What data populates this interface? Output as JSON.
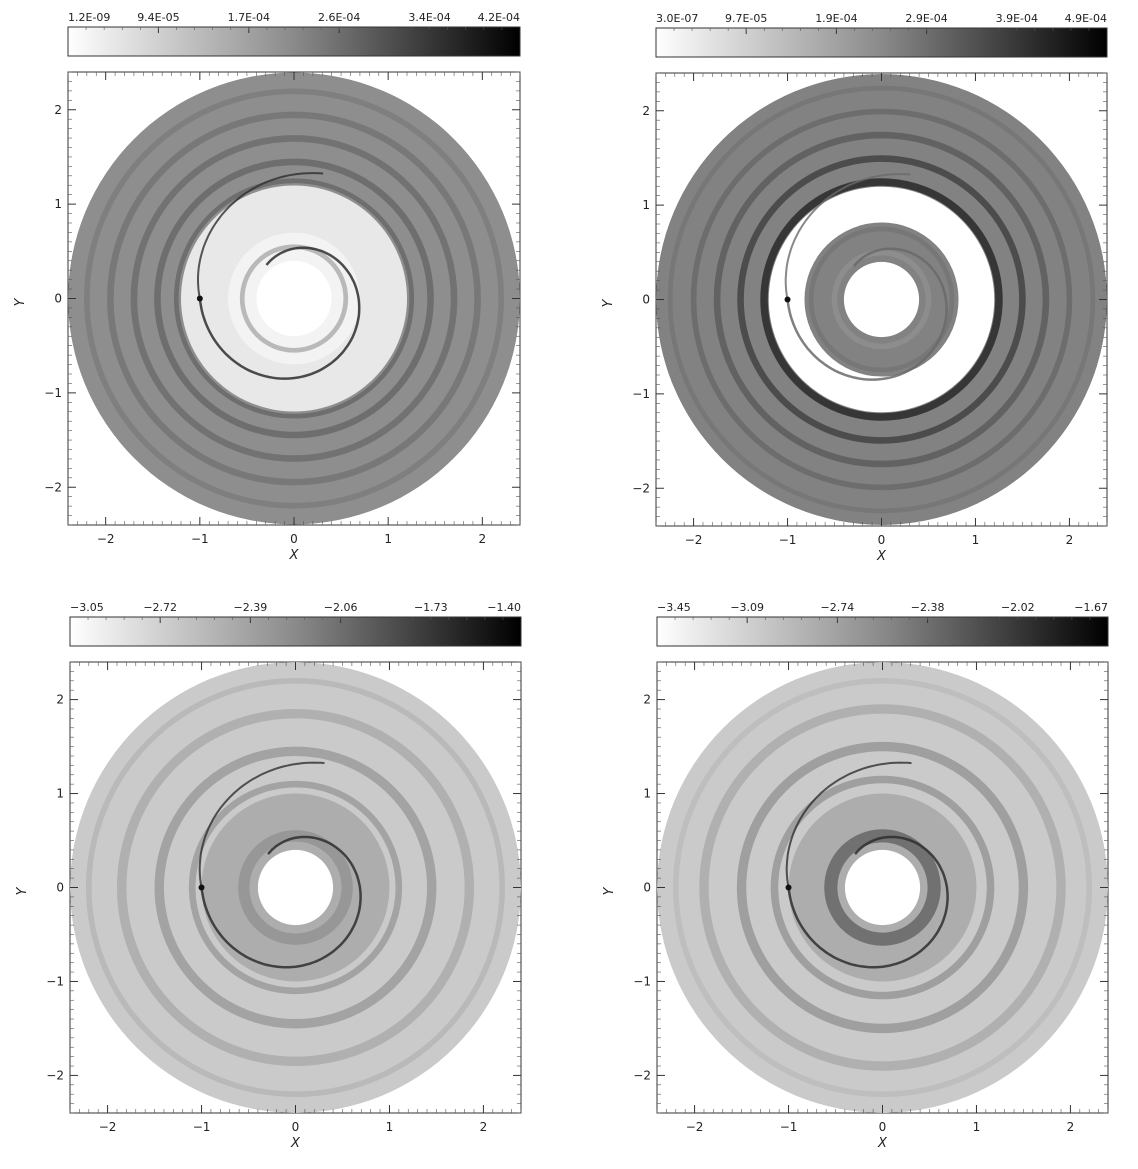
{
  "chart_data": [
    {
      "type": "heatmap",
      "panel": "top-left",
      "xlabel": "X",
      "ylabel": "Y",
      "xlim": [
        -2.4,
        2.4
      ],
      "ylim": [
        -2.4,
        2.4
      ],
      "xticks": [
        "−2",
        "−1",
        "0",
        "1",
        "2"
      ],
      "yticks": [
        "2",
        "1",
        "0",
        "−1",
        "−2"
      ],
      "colorbar_ticks": [
        "1.2E-09",
        "9.4E-05",
        "1.7E-04",
        "2.6E-04",
        "3.4E-04",
        "4.2E-04"
      ],
      "colorbar_range": [
        1.2e-09,
        0.00042
      ],
      "disk": {
        "inner_radius": 0.4,
        "outer_radius": 2.4
      },
      "planet": {
        "x": -1.0,
        "y": 0.0
      },
      "gap_style": "light",
      "base_level": 0.45,
      "ring_bands": [
        {
          "r": 0.55,
          "w": 0.05,
          "level": 0.3
        },
        {
          "r": 1.25,
          "w": 0.05,
          "level": 0.6
        },
        {
          "r": 1.45,
          "w": 0.07,
          "level": 0.6
        },
        {
          "r": 1.7,
          "w": 0.07,
          "level": 0.58
        },
        {
          "r": 1.95,
          "w": 0.07,
          "level": 0.55
        },
        {
          "r": 2.2,
          "w": 0.06,
          "level": 0.52
        }
      ],
      "spiral_level": 0.85
    },
    {
      "type": "heatmap",
      "panel": "top-right",
      "xlabel": "X",
      "ylabel": "Y",
      "xlim": [
        -2.4,
        2.4
      ],
      "ylim": [
        -2.4,
        2.4
      ],
      "xticks": [
        "−2",
        "−1",
        "0",
        "1",
        "2"
      ],
      "yticks": [
        "2",
        "1",
        "0",
        "−1",
        "−2"
      ],
      "colorbar_ticks": [
        "3.0E-07",
        "9.7E-05",
        "1.9E-04",
        "2.9E-04",
        "3.9E-04",
        "4.9E-04"
      ],
      "colorbar_range": [
        3e-07,
        0.00049
      ],
      "disk": {
        "inner_radius": 0.4,
        "outer_radius": 2.4
      },
      "planet": {
        "x": -1.0,
        "y": 0.0
      },
      "gap_style": "white",
      "base_level": 0.5,
      "ring_bands": [
        {
          "r": 0.5,
          "w": 0.06,
          "level": 0.45
        },
        {
          "r": 0.75,
          "w": 0.05,
          "level": 0.55
        },
        {
          "r": 1.25,
          "w": 0.08,
          "level": 0.85
        },
        {
          "r": 1.5,
          "w": 0.07,
          "level": 0.75
        },
        {
          "r": 1.75,
          "w": 0.07,
          "level": 0.65
        },
        {
          "r": 2.0,
          "w": 0.06,
          "level": 0.6
        },
        {
          "r": 2.25,
          "w": 0.05,
          "level": 0.55
        }
      ],
      "spiral_level": 0.6
    },
    {
      "type": "heatmap",
      "panel": "bottom-left",
      "xlabel": "X",
      "ylabel": "Y",
      "xlim": [
        -2.4,
        2.4
      ],
      "ylim": [
        -2.4,
        2.4
      ],
      "xticks": [
        "−2",
        "−1",
        "0",
        "1",
        "2"
      ],
      "yticks": [
        "2",
        "1",
        "0",
        "−1",
        "−2"
      ],
      "colorbar_ticks": [
        "−3.05",
        "−2.72",
        "−2.39",
        "−2.06",
        "−1.73",
        "−1.40"
      ],
      "colorbar_range": [
        -3.05,
        -1.4
      ],
      "disk": {
        "inner_radius": 0.4,
        "outer_radius": 2.4
      },
      "planet": {
        "x": -1.0,
        "y": 0.0
      },
      "gap_style": "smooth",
      "base_level": 0.2,
      "ring_bands": [
        {
          "r": 0.55,
          "w": 0.12,
          "level": 0.42
        },
        {
          "r": 1.1,
          "w": 0.07,
          "level": 0.38
        },
        {
          "r": 1.45,
          "w": 0.1,
          "level": 0.38
        },
        {
          "r": 1.85,
          "w": 0.1,
          "level": 0.32
        },
        {
          "r": 2.2,
          "w": 0.06,
          "level": 0.28
        }
      ],
      "spiral_level": 0.85
    },
    {
      "type": "heatmap",
      "panel": "bottom-right",
      "xlabel": "X",
      "ylabel": "Y",
      "xlim": [
        -2.4,
        2.4
      ],
      "ylim": [
        -2.4,
        2.4
      ],
      "xticks": [
        "−2",
        "−1",
        "0",
        "1",
        "2"
      ],
      "yticks": [
        "2",
        "1",
        "0",
        "−1",
        "−2"
      ],
      "colorbar_ticks": [
        "−3.45",
        "−3.09",
        "−2.74",
        "−2.38",
        "−2.02",
        "−1.67"
      ],
      "colorbar_range": [
        -3.45,
        -1.67
      ],
      "disk": {
        "inner_radius": 0.4,
        "outer_radius": 2.4
      },
      "planet": {
        "x": -1.0,
        "y": 0.0
      },
      "gap_style": "smooth",
      "base_level": 0.2,
      "ring_bands": [
        {
          "r": 0.55,
          "w": 0.14,
          "level": 0.6
        },
        {
          "r": 1.15,
          "w": 0.08,
          "level": 0.4
        },
        {
          "r": 1.5,
          "w": 0.1,
          "level": 0.4
        },
        {
          "r": 1.9,
          "w": 0.1,
          "level": 0.32
        },
        {
          "r": 2.2,
          "w": 0.06,
          "level": 0.26
        }
      ],
      "spiral_level": 0.85
    }
  ]
}
